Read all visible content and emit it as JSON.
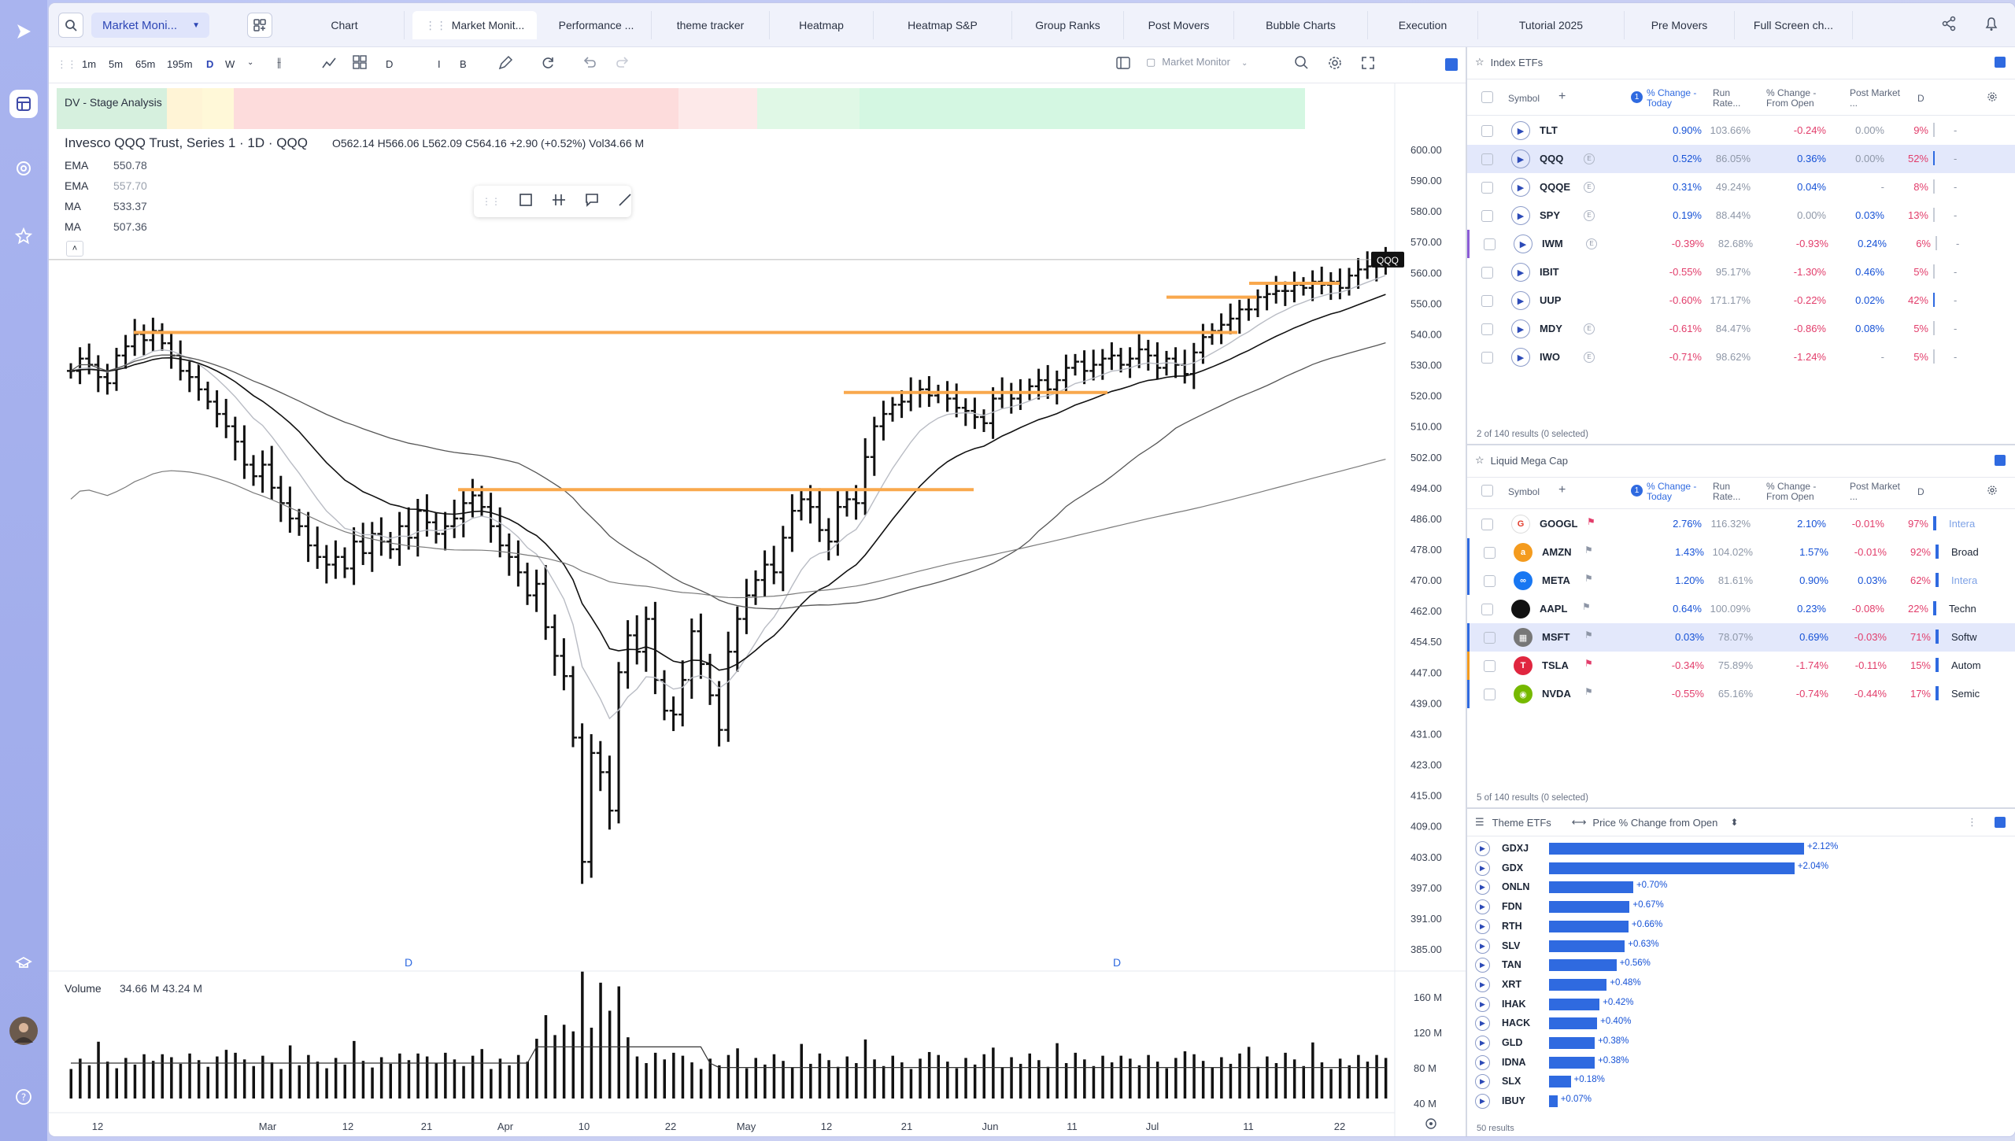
{
  "nav": {
    "tabs": [
      "Chart",
      "Market Monit...",
      "Performance ...",
      "theme tracker",
      "Heatmap",
      "Heatmap S&P",
      "Group Ranks",
      "Post Movers",
      "Bubble Charts",
      "Execution",
      "Tutorial 2025",
      "Pre Movers",
      "Full Screen ch..."
    ],
    "layout_select": "Market Moni..."
  },
  "toolbar": {
    "intervals": [
      "1m",
      "5m",
      "65m",
      "195m",
      "D",
      "W"
    ],
    "extra": [
      "D",
      "I",
      "B"
    ],
    "monitor_label": "Market Monitor"
  },
  "chart": {
    "stage_label": "DV - Stage Analysis",
    "title": "Invesco QQQ Trust, Series 1 · 1D · QQQ",
    "ohlc": "O562.14  H566.06  L562.09  C564.16  +2.90 (+0.52%)  Vol34.66 M",
    "legend": [
      {
        "name": "EMA",
        "value": "550.78"
      },
      {
        "name": "EMA",
        "value": "557.70"
      },
      {
        "name": "MA",
        "value": "533.37"
      },
      {
        "name": "MA",
        "value": "507.36"
      }
    ],
    "price_ticks": [
      "600.00",
      "590.00",
      "580.00",
      "570.00",
      "560.00",
      "550.00",
      "540.00",
      "530.00",
      "520.00",
      "510.00",
      "502.00",
      "494.00",
      "486.00",
      "478.00",
      "470.00",
      "462.00",
      "454.50",
      "447.00",
      "439.00",
      "431.00",
      "423.00",
      "415.00",
      "409.00",
      "403.00",
      "397.00",
      "391.00",
      "385.00"
    ],
    "date_ticks": [
      "12",
      "Mar",
      "12",
      "21",
      "Apr",
      "10",
      "22",
      "May",
      "12",
      "21",
      "Jun",
      "11",
      "Jul",
      "11",
      "22"
    ],
    "price_tag": "QQQ",
    "d_marker": "D",
    "volume_label": "Volume",
    "volume_values": "34.66 M  43.24 M",
    "volume_ticks": [
      "160 M",
      "120 M",
      "80 M",
      "40 M"
    ]
  },
  "index_etfs": {
    "title": "Index ETFs",
    "headers": {
      "symbol": "Symbol",
      "chg": "% Change - Today",
      "run": "Run Rate...",
      "open": "% Change - From Open",
      "post": "Post Market ...",
      "d": "D"
    },
    "rows": [
      {
        "sym": "TLT",
        "chg": "0.90%",
        "run": "103.66%",
        "open": "-0.24%",
        "post": "0.00%",
        "d": "9%"
      },
      {
        "sym": "QQQ",
        "chg": "0.52%",
        "run": "86.05%",
        "open": "0.36%",
        "post": "0.00%",
        "d": "52%"
      },
      {
        "sym": "QQQE",
        "chg": "0.31%",
        "run": "49.24%",
        "open": "0.04%",
        "post": "-",
        "d": "8%"
      },
      {
        "sym": "SPY",
        "chg": "0.19%",
        "run": "88.44%",
        "open": "0.00%",
        "post": "0.03%",
        "d": "13%"
      },
      {
        "sym": "IWM",
        "chg": "-0.39%",
        "run": "82.68%",
        "open": "-0.93%",
        "post": "0.24%",
        "d": "6%"
      },
      {
        "sym": "IBIT",
        "chg": "-0.55%",
        "run": "95.17%",
        "open": "-1.30%",
        "post": "0.46%",
        "d": "5%"
      },
      {
        "sym": "UUP",
        "chg": "-0.60%",
        "run": "171.17%",
        "open": "-0.22%",
        "post": "0.02%",
        "d": "42%"
      },
      {
        "sym": "MDY",
        "chg": "-0.61%",
        "run": "84.47%",
        "open": "-0.86%",
        "post": "0.08%",
        "d": "5%"
      },
      {
        "sym": "IWO",
        "chg": "-0.71%",
        "run": "98.62%",
        "open": "-1.24%",
        "post": "-",
        "d": "5%"
      }
    ],
    "footer": "2 of 140 results (0 selected)"
  },
  "mega_cap": {
    "title": "Liquid Mega Cap",
    "rows": [
      {
        "sym": "GOOGL",
        "chg": "2.76%",
        "run": "116.32%",
        "open": "2.10%",
        "post": "-0.01%",
        "d": "97%",
        "ind": "Intera"
      },
      {
        "sym": "AMZN",
        "chg": "1.43%",
        "run": "104.02%",
        "open": "1.57%",
        "post": "-0.01%",
        "d": "92%",
        "ind": "Broad"
      },
      {
        "sym": "META",
        "chg": "1.20%",
        "run": "81.61%",
        "open": "0.90%",
        "post": "0.03%",
        "d": "62%",
        "ind": "Intera"
      },
      {
        "sym": "AAPL",
        "chg": "0.64%",
        "run": "100.09%",
        "open": "0.23%",
        "post": "-0.08%",
        "d": "22%",
        "ind": "Techn"
      },
      {
        "sym": "MSFT",
        "chg": "0.03%",
        "run": "78.07%",
        "open": "0.69%",
        "post": "-0.03%",
        "d": "71%",
        "ind": "Softw"
      },
      {
        "sym": "TSLA",
        "chg": "-0.34%",
        "run": "75.89%",
        "open": "-1.74%",
        "post": "-0.11%",
        "d": "15%",
        "ind": "Autom"
      },
      {
        "sym": "NVDA",
        "chg": "-0.55%",
        "run": "65.16%",
        "open": "-0.74%",
        "post": "-0.44%",
        "d": "17%",
        "ind": "Semic"
      }
    ],
    "footer": "5 of 140 results (0 selected)"
  },
  "themes": {
    "title": "Theme ETFs",
    "metric": "Price % Change from Open",
    "rows": [
      {
        "sym": "GDXJ",
        "val": 2.12,
        "label": "+2.12%"
      },
      {
        "sym": "GDX",
        "val": 2.04,
        "label": "+2.04%"
      },
      {
        "sym": "ONLN",
        "val": 0.7,
        "label": "+0.70%"
      },
      {
        "sym": "FDN",
        "val": 0.67,
        "label": "+0.67%"
      },
      {
        "sym": "RTH",
        "val": 0.66,
        "label": "+0.66%"
      },
      {
        "sym": "SLV",
        "val": 0.63,
        "label": "+0.63%"
      },
      {
        "sym": "TAN",
        "val": 0.56,
        "label": "+0.56%"
      },
      {
        "sym": "XRT",
        "val": 0.48,
        "label": "+0.48%"
      },
      {
        "sym": "IHAK",
        "val": 0.42,
        "label": "+0.42%"
      },
      {
        "sym": "HACK",
        "val": 0.4,
        "label": "+0.40%"
      },
      {
        "sym": "GLD",
        "val": 0.38,
        "label": "+0.38%"
      },
      {
        "sym": "IDNA",
        "val": 0.38,
        "label": "+0.38%"
      },
      {
        "sym": "SLX",
        "val": 0.18,
        "label": "+0.18%"
      },
      {
        "sym": "IBUY",
        "val": 0.07,
        "label": "+0.07%"
      }
    ],
    "footer": "50 results"
  },
  "colors": {
    "accent": "#2f6ae0",
    "positive": "#1652d6",
    "negative": "#e23d6b",
    "resistance": "#f9a84d"
  }
}
